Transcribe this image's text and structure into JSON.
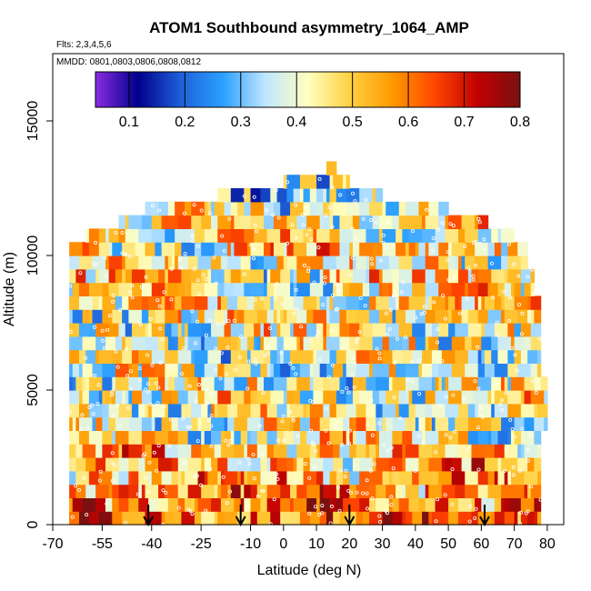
{
  "chart_data": {
    "type": "heatmap",
    "title": "ATOM1 Southbound asymmetry_1064_AMP",
    "subtitle_flights": "Flts: 2,3,4,5,6",
    "subtitle_dates": "MMDD: 0801,0803,0806,0808,0812",
    "xlabel": "Latitude (deg N)",
    "ylabel": "Altitude (m)",
    "xlim": [
      -70,
      85
    ],
    "ylim": [
      0,
      17500
    ],
    "x_ticks": [
      -70,
      -55,
      -40,
      -25,
      -10,
      0,
      10,
      20,
      30,
      40,
      50,
      60,
      70,
      80
    ],
    "x_tick_labels": [
      "-70",
      "-55",
      "-40",
      "-25",
      "-10",
      "0",
      "10",
      "20",
      "30",
      "40",
      "50",
      "60",
      "70",
      "80"
    ],
    "y_ticks": [
      0,
      5000,
      10000,
      15000
    ],
    "y_tick_labels": [
      "0",
      "5000",
      "10000",
      "15000"
    ],
    "colorbar": {
      "range": [
        0.04,
        0.8
      ],
      "ticks": [
        0.1,
        0.2,
        0.3,
        0.4,
        0.5,
        0.6,
        0.7,
        0.8
      ],
      "tick_labels": [
        "0.1",
        "0.2",
        "0.3",
        "0.4",
        "0.5",
        "0.6",
        "0.7",
        "0.8"
      ],
      "colors": [
        "#8a2be2",
        "#00008b",
        "#1e5fd8",
        "#2aa0ff",
        "#bfe6ff",
        "#ffffc0",
        "#ffd040",
        "#ff9900",
        "#ff4500",
        "#c00000",
        "#7a1010"
      ]
    },
    "altitude_bin_m": 500,
    "arrows_latitude": [
      -41,
      -13,
      20,
      61
    ],
    "profile": [
      {
        "alt": 500,
        "lat_min": -65,
        "lat_max": 78,
        "mean": 0.62
      },
      {
        "alt": 1000,
        "lat_min": -65,
        "lat_max": 78,
        "mean": 0.6
      },
      {
        "alt": 1500,
        "lat_min": -65,
        "lat_max": 78,
        "mean": 0.58
      },
      {
        "alt": 2000,
        "lat_min": -65,
        "lat_max": 78,
        "mean": 0.54
      },
      {
        "alt": 2500,
        "lat_min": -65,
        "lat_max": 78,
        "mean": 0.52
      },
      {
        "alt": 3000,
        "lat_min": -65,
        "lat_max": 78,
        "mean": 0.5
      },
      {
        "alt": 3500,
        "lat_min": -65,
        "lat_max": 78,
        "mean": 0.46
      },
      {
        "alt": 4000,
        "lat_min": -65,
        "lat_max": 80,
        "mean": 0.44
      },
      {
        "alt": 4500,
        "lat_min": -65,
        "lat_max": 80,
        "mean": 0.42
      },
      {
        "alt": 5000,
        "lat_min": -65,
        "lat_max": 80,
        "mean": 0.44
      },
      {
        "alt": 5500,
        "lat_min": -65,
        "lat_max": 80,
        "mean": 0.42
      },
      {
        "alt": 6000,
        "lat_min": -65,
        "lat_max": 78,
        "mean": 0.4
      },
      {
        "alt": 6500,
        "lat_min": -65,
        "lat_max": 78,
        "mean": 0.42
      },
      {
        "alt": 7000,
        "lat_min": -65,
        "lat_max": 78,
        "mean": 0.44
      },
      {
        "alt": 7500,
        "lat_min": -65,
        "lat_max": 78,
        "mean": 0.44
      },
      {
        "alt": 8000,
        "lat_min": -65,
        "lat_max": 78,
        "mean": 0.45
      },
      {
        "alt": 8500,
        "lat_min": -65,
        "lat_max": 78,
        "mean": 0.46
      },
      {
        "alt": 9000,
        "lat_min": -65,
        "lat_max": 76,
        "mean": 0.46
      },
      {
        "alt": 9500,
        "lat_min": -65,
        "lat_max": 76,
        "mean": 0.45
      },
      {
        "alt": 10000,
        "lat_min": -65,
        "lat_max": 74,
        "mean": 0.46
      },
      {
        "alt": 10500,
        "lat_min": -65,
        "lat_max": 74,
        "mean": 0.47
      },
      {
        "alt": 11000,
        "lat_min": -60,
        "lat_max": 70,
        "mean": 0.47
      },
      {
        "alt": 11500,
        "lat_min": -50,
        "lat_max": 62,
        "mean": 0.45
      },
      {
        "alt": 12000,
        "lat_min": -42,
        "lat_max": 50,
        "mean": 0.42
      },
      {
        "alt": 12500,
        "lat_min": -20,
        "lat_max": 30,
        "mean": 0.36
      },
      {
        "alt": 13000,
        "lat_min": 0,
        "lat_max": 20,
        "mean": 0.33
      },
      {
        "alt": 13500,
        "lat_min": 13,
        "lat_max": 16,
        "mean": 0.33
      }
    ]
  }
}
